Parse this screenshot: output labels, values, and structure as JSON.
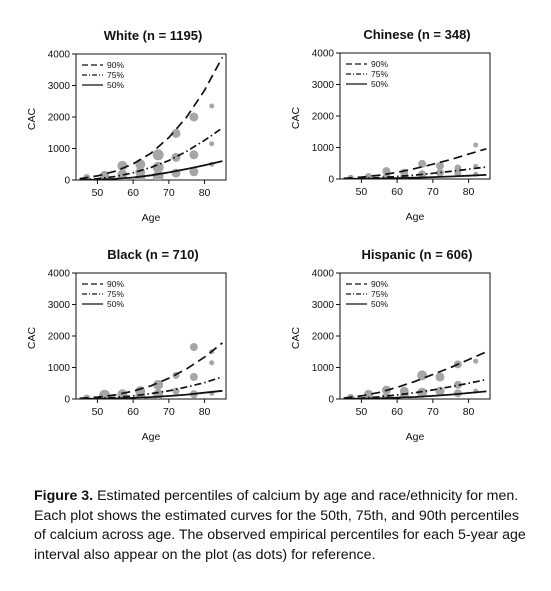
{
  "chart_data": [
    {
      "type": "line",
      "title": "White (n = 1195)",
      "xlabel": "Age",
      "ylabel": "CAC",
      "xlim": [
        44,
        86
      ],
      "ylim": [
        0,
        4000
      ],
      "xticks": [
        "50",
        "60",
        "70",
        "80"
      ],
      "yticks": [
        "0",
        "1000",
        "2000",
        "3000",
        "4000"
      ],
      "legend_position": "top-left",
      "series": [
        {
          "name": "90%",
          "style": "dashed",
          "x": [
            45,
            50,
            55,
            60,
            65,
            70,
            75,
            80,
            85
          ],
          "values": [
            40,
            130,
            280,
            510,
            850,
            1350,
            2000,
            2850,
            3900
          ]
        },
        {
          "name": "75%",
          "style": "dashdot",
          "x": [
            45,
            50,
            55,
            60,
            65,
            70,
            75,
            80,
            85
          ],
          "values": [
            10,
            40,
            110,
            230,
            400,
            620,
            910,
            1260,
            1650
          ]
        },
        {
          "name": "50%",
          "style": "solid",
          "x": [
            45,
            50,
            55,
            60,
            65,
            70,
            75,
            80,
            85
          ],
          "values": [
            0,
            10,
            35,
            80,
            150,
            240,
            350,
            470,
            600
          ]
        }
      ],
      "points": [
        {
          "x": 47,
          "y": 80,
          "r": 3.5
        },
        {
          "x": 47,
          "y": 20,
          "r": 3.5
        },
        {
          "x": 47,
          "y": 0,
          "r": 3.5
        },
        {
          "x": 52,
          "y": 150,
          "r": 4.5
        },
        {
          "x": 52,
          "y": 60,
          "r": 4.5
        },
        {
          "x": 52,
          "y": 10,
          "r": 4.5
        },
        {
          "x": 57,
          "y": 450,
          "r": 5
        },
        {
          "x": 57,
          "y": 170,
          "r": 5
        },
        {
          "x": 57,
          "y": 30,
          "r": 5
        },
        {
          "x": 62,
          "y": 500,
          "r": 5
        },
        {
          "x": 62,
          "y": 250,
          "r": 5
        },
        {
          "x": 62,
          "y": 60,
          "r": 5
        },
        {
          "x": 67,
          "y": 800,
          "r": 5.5
        },
        {
          "x": 67,
          "y": 400,
          "r": 5.5
        },
        {
          "x": 67,
          "y": 120,
          "r": 5.5
        },
        {
          "x": 72,
          "y": 1480,
          "r": 4.5
        },
        {
          "x": 72,
          "y": 720,
          "r": 4.5
        },
        {
          "x": 72,
          "y": 220,
          "r": 4.5
        },
        {
          "x": 77,
          "y": 2000,
          "r": 4.5
        },
        {
          "x": 77,
          "y": 800,
          "r": 4.5
        },
        {
          "x": 77,
          "y": 260,
          "r": 4.5
        },
        {
          "x": 82,
          "y": 2350,
          "r": 2.5
        },
        {
          "x": 82,
          "y": 1150,
          "r": 2.5
        },
        {
          "x": 82,
          "y": 500,
          "r": 2.5
        }
      ]
    },
    {
      "type": "line",
      "title": "Chinese (n = 348)",
      "xlabel": "Age",
      "ylabel": "CAC",
      "xlim": [
        44,
        86
      ],
      "ylim": [
        0,
        4000
      ],
      "xticks": [
        "50",
        "60",
        "70",
        "80"
      ],
      "yticks": [
        "0",
        "1000",
        "2000",
        "3000",
        "4000"
      ],
      "legend_position": "top-left",
      "series": [
        {
          "name": "90%",
          "style": "dashed",
          "x": [
            45,
            50,
            55,
            60,
            65,
            70,
            75,
            80,
            85
          ],
          "values": [
            20,
            60,
            120,
            210,
            330,
            470,
            620,
            790,
            960
          ]
        },
        {
          "name": "75%",
          "style": "dashdot",
          "x": [
            45,
            50,
            55,
            60,
            65,
            70,
            75,
            80,
            85
          ],
          "values": [
            5,
            20,
            45,
            80,
            125,
            180,
            240,
            310,
            380
          ]
        },
        {
          "name": "50%",
          "style": "solid",
          "x": [
            45,
            50,
            55,
            60,
            65,
            70,
            75,
            80,
            85
          ],
          "values": [
            0,
            5,
            12,
            25,
            40,
            60,
            80,
            105,
            130
          ]
        }
      ],
      "points": [
        {
          "x": 47,
          "y": 40,
          "r": 3
        },
        {
          "x": 47,
          "y": 5,
          "r": 3
        },
        {
          "x": 52,
          "y": 80,
          "r": 3.5
        },
        {
          "x": 52,
          "y": 15,
          "r": 3.5
        },
        {
          "x": 57,
          "y": 250,
          "r": 4
        },
        {
          "x": 57,
          "y": 60,
          "r": 4
        },
        {
          "x": 62,
          "y": 200,
          "r": 4
        },
        {
          "x": 62,
          "y": 70,
          "r": 4
        },
        {
          "x": 67,
          "y": 480,
          "r": 4
        },
        {
          "x": 67,
          "y": 150,
          "r": 4
        },
        {
          "x": 72,
          "y": 420,
          "r": 4
        },
        {
          "x": 72,
          "y": 200,
          "r": 4
        },
        {
          "x": 77,
          "y": 350,
          "r": 3.5
        },
        {
          "x": 77,
          "y": 180,
          "r": 3.5
        },
        {
          "x": 82,
          "y": 1080,
          "r": 2.5
        },
        {
          "x": 82,
          "y": 400,
          "r": 2.5
        },
        {
          "x": 82,
          "y": 150,
          "r": 2.5
        }
      ]
    },
    {
      "type": "line",
      "title": "Black (n = 710)",
      "xlabel": "Age",
      "ylabel": "CAC",
      "xlim": [
        44,
        86
      ],
      "ylim": [
        0,
        4000
      ],
      "xticks": [
        "50",
        "60",
        "70",
        "80"
      ],
      "yticks": [
        "0",
        "1000",
        "2000",
        "3000",
        "4000"
      ],
      "legend_position": "top-left",
      "series": [
        {
          "name": "90%",
          "style": "dashed",
          "x": [
            45,
            50,
            55,
            60,
            65,
            70,
            75,
            80,
            85
          ],
          "values": [
            20,
            60,
            130,
            250,
            420,
            660,
            960,
            1330,
            1780
          ]
        },
        {
          "name": "75%",
          "style": "dashdot",
          "x": [
            45,
            50,
            55,
            60,
            65,
            70,
            75,
            80,
            85
          ],
          "values": [
            5,
            20,
            50,
            100,
            170,
            260,
            380,
            520,
            700
          ]
        },
        {
          "name": "50%",
          "style": "solid",
          "x": [
            45,
            50,
            55,
            60,
            65,
            70,
            75,
            80,
            85
          ],
          "values": [
            0,
            5,
            15,
            35,
            60,
            95,
            140,
            200,
            260
          ]
        }
      ],
      "points": [
        {
          "x": 47,
          "y": 30,
          "r": 3.5
        },
        {
          "x": 47,
          "y": 5,
          "r": 3.5
        },
        {
          "x": 52,
          "y": 120,
          "r": 5.5
        },
        {
          "x": 52,
          "y": 40,
          "r": 5.5
        },
        {
          "x": 57,
          "y": 150,
          "r": 5
        },
        {
          "x": 57,
          "y": 40,
          "r": 5
        },
        {
          "x": 62,
          "y": 250,
          "r": 5
        },
        {
          "x": 62,
          "y": 100,
          "r": 5
        },
        {
          "x": 67,
          "y": 450,
          "r": 5
        },
        {
          "x": 67,
          "y": 150,
          "r": 5
        },
        {
          "x": 72,
          "y": 750,
          "r": 3.5
        },
        {
          "x": 72,
          "y": 250,
          "r": 3.5
        },
        {
          "x": 77,
          "y": 1650,
          "r": 4
        },
        {
          "x": 77,
          "y": 700,
          "r": 4
        },
        {
          "x": 77,
          "y": 150,
          "r": 4
        },
        {
          "x": 82,
          "y": 1500,
          "r": 2.5
        },
        {
          "x": 82,
          "y": 1150,
          "r": 2.5
        },
        {
          "x": 82,
          "y": 180,
          "r": 2.5
        }
      ]
    },
    {
      "type": "line",
      "title": "Hispanic (n = 606)",
      "xlabel": "Age",
      "ylabel": "CAC",
      "xlim": [
        44,
        86
      ],
      "ylim": [
        0,
        4000
      ],
      "xticks": [
        "50",
        "60",
        "70",
        "80"
      ],
      "yticks": [
        "0",
        "1000",
        "2000",
        "3000",
        "4000"
      ],
      "legend_position": "top-left",
      "series": [
        {
          "name": "90%",
          "style": "dashed",
          "x": [
            45,
            50,
            55,
            60,
            65,
            70,
            75,
            80,
            85
          ],
          "values": [
            30,
            100,
            210,
            370,
            560,
            780,
            1000,
            1250,
            1500
          ]
        },
        {
          "name": "75%",
          "style": "dashdot",
          "x": [
            45,
            50,
            55,
            60,
            65,
            70,
            75,
            80,
            85
          ],
          "values": [
            10,
            30,
            70,
            130,
            200,
            290,
            390,
            500,
            620
          ]
        },
        {
          "name": "50%",
          "style": "solid",
          "x": [
            45,
            50,
            55,
            60,
            65,
            70,
            75,
            80,
            85
          ],
          "values": [
            0,
            8,
            20,
            40,
            65,
            100,
            140,
            190,
            240
          ]
        }
      ],
      "points": [
        {
          "x": 47,
          "y": 50,
          "r": 3.5
        },
        {
          "x": 47,
          "y": 10,
          "r": 3.5
        },
        {
          "x": 52,
          "y": 150,
          "r": 4.5
        },
        {
          "x": 52,
          "y": 40,
          "r": 4.5
        },
        {
          "x": 57,
          "y": 280,
          "r": 4.5
        },
        {
          "x": 57,
          "y": 60,
          "r": 4.5
        },
        {
          "x": 62,
          "y": 250,
          "r": 4.5
        },
        {
          "x": 62,
          "y": 80,
          "r": 4.5
        },
        {
          "x": 67,
          "y": 750,
          "r": 5
        },
        {
          "x": 67,
          "y": 200,
          "r": 5
        },
        {
          "x": 72,
          "y": 700,
          "r": 4.5
        },
        {
          "x": 72,
          "y": 250,
          "r": 4.5
        },
        {
          "x": 77,
          "y": 1100,
          "r": 4
        },
        {
          "x": 77,
          "y": 450,
          "r": 4
        },
        {
          "x": 77,
          "y": 180,
          "r": 4
        },
        {
          "x": 82,
          "y": 1200,
          "r": 2.5
        },
        {
          "x": 82,
          "y": 250,
          "r": 2.5
        }
      ]
    }
  ],
  "caption": {
    "label": "Figure 3.",
    "text": " Estimated percentiles of calcium by age and race/ethnicity for men. Each plot shows the estimated curves for the 50th, 75th, and 90th percentiles of calcium across age. The observed empirical percentiles for each 5-year age interval also appear on the plot (as dots) for reference."
  },
  "colors": {
    "line": "#111111",
    "dot": "#a6a6a6"
  }
}
